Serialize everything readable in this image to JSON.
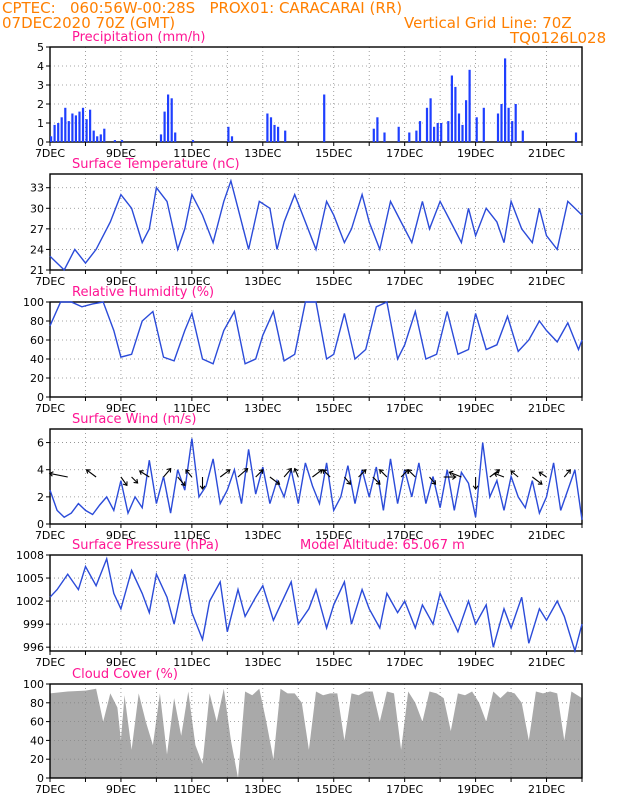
{
  "header": {
    "line1": "CPTEC:   060:56W-00:28S   PROX01: CARACARAI (RR)",
    "line2_left": "07DEC2020 70Z (GMT)",
    "line2_right": "Vertical Grid Line: 70Z",
    "line3_right": "TQ0126L028"
  },
  "colors": {
    "header": "#ff7f00",
    "panel_title": "#ff1493",
    "series": "#2b4bd9",
    "bars": "#1f3fff",
    "cloud": "#a9a9a9",
    "arrow": "#000000"
  },
  "date_labels": [
    "7DEC",
    "9DEC",
    "11DEC",
    "13DEC",
    "15DEC",
    "17DEC",
    "19DEC",
    "21DEC"
  ],
  "chart_data": [
    {
      "id": "precip",
      "type": "bar",
      "title": "Precipitation (mm/h)",
      "x_range_days": [
        7,
        22
      ],
      "ylim": [
        0,
        5
      ],
      "yticks": [
        "0",
        "1",
        "2",
        "3",
        "4",
        "5"
      ],
      "x": [
        7.0,
        7.1,
        7.2,
        7.3,
        7.4,
        7.5,
        7.6,
        7.7,
        7.8,
        7.9,
        8.0,
        8.1,
        8.2,
        8.3,
        8.4,
        8.5,
        8.8,
        9.0,
        10.1,
        10.2,
        10.3,
        10.4,
        10.5,
        11.0,
        12.0,
        12.1,
        13.1,
        13.2,
        13.3,
        13.4,
        13.6,
        14.7,
        16.1,
        16.2,
        16.4,
        16.8,
        17.1,
        17.3,
        17.4,
        17.6,
        17.7,
        17.8,
        17.9,
        18.0,
        18.2,
        18.3,
        18.4,
        18.5,
        18.6,
        18.7,
        18.8,
        19.0,
        19.2,
        19.6,
        19.7,
        19.8,
        19.9,
        20.0,
        20.1,
        20.3,
        21.8
      ],
      "values": [
        0.3,
        0.9,
        1.0,
        1.3,
        1.8,
        1.1,
        1.5,
        1.4,
        1.6,
        1.8,
        1.2,
        1.7,
        0.6,
        0.3,
        0.4,
        0.7,
        0.1,
        0.1,
        0.4,
        1.6,
        2.5,
        2.3,
        0.5,
        0.1,
        0.8,
        0.3,
        1.5,
        1.3,
        0.9,
        0.8,
        0.6,
        2.5,
        0.7,
        1.3,
        0.5,
        0.8,
        0.5,
        0.6,
        1.1,
        1.8,
        2.3,
        0.8,
        1.0,
        1.0,
        1.1,
        3.5,
        2.9,
        1.5,
        0.9,
        2.2,
        3.8,
        1.3,
        1.8,
        1.5,
        2.0,
        4.4,
        1.8,
        1.1,
        2.0,
        0.6,
        0.5
      ]
    },
    {
      "id": "temp",
      "type": "line",
      "title": "Surface Temperature (nC)",
      "x_range_days": [
        7,
        22
      ],
      "ylim": [
        21,
        35
      ],
      "yticks": [
        "21",
        "24",
        "27",
        "30",
        "33"
      ],
      "x": [
        7.0,
        7.2,
        7.4,
        7.7,
        8.0,
        8.3,
        8.5,
        8.7,
        9.0,
        9.3,
        9.6,
        9.8,
        10.0,
        10.3,
        10.6,
        10.8,
        11.0,
        11.3,
        11.6,
        11.9,
        12.1,
        12.3,
        12.6,
        12.9,
        13.2,
        13.4,
        13.6,
        13.9,
        14.2,
        14.5,
        14.8,
        15.0,
        15.3,
        15.5,
        15.8,
        16.0,
        16.3,
        16.6,
        16.9,
        17.2,
        17.5,
        17.7,
        18.0,
        18.3,
        18.6,
        18.8,
        19.0,
        19.3,
        19.6,
        19.8,
        20.0,
        20.3,
        20.6,
        20.8,
        21.0,
        21.3,
        21.6,
        22.0
      ],
      "values": [
        23,
        22,
        21,
        24,
        22,
        24,
        26,
        28,
        32,
        30,
        25,
        27,
        33,
        31,
        24,
        27,
        32,
        29,
        25,
        31,
        34,
        30,
        24,
        31,
        30,
        24,
        28,
        32,
        28,
        24,
        31,
        29,
        25,
        27,
        32,
        28,
        24,
        31,
        28,
        25,
        31,
        27,
        31,
        28,
        25,
        30,
        26,
        30,
        28,
        25,
        31,
        27,
        25,
        30,
        26,
        24,
        31,
        29
      ]
    },
    {
      "id": "rh",
      "type": "line",
      "title": "Relative Humidity (%)",
      "x_range_days": [
        7,
        22
      ],
      "ylim": [
        0,
        100
      ],
      "yticks": [
        "0",
        "20",
        "40",
        "60",
        "80",
        "100"
      ],
      "x": [
        7.0,
        7.3,
        7.6,
        7.9,
        8.2,
        8.5,
        8.8,
        9.0,
        9.3,
        9.6,
        9.9,
        10.2,
        10.5,
        10.8,
        11.0,
        11.3,
        11.6,
        11.9,
        12.2,
        12.5,
        12.8,
        13.0,
        13.3,
        13.6,
        13.9,
        14.2,
        14.5,
        14.8,
        15.0,
        15.3,
        15.6,
        15.9,
        16.2,
        16.5,
        16.8,
        17.0,
        17.3,
        17.6,
        17.9,
        18.2,
        18.5,
        18.8,
        19.0,
        19.3,
        19.6,
        19.9,
        20.2,
        20.5,
        20.8,
        21.0,
        21.3,
        21.6,
        21.9,
        22.0
      ],
      "values": [
        75,
        100,
        100,
        95,
        98,
        100,
        70,
        42,
        45,
        80,
        90,
        42,
        38,
        70,
        88,
        40,
        35,
        70,
        90,
        35,
        40,
        65,
        90,
        38,
        45,
        100,
        100,
        40,
        45,
        88,
        40,
        50,
        95,
        100,
        40,
        55,
        90,
        40,
        45,
        90,
        45,
        50,
        88,
        50,
        55,
        85,
        48,
        60,
        80,
        70,
        58,
        78,
        50,
        60
      ]
    },
    {
      "id": "wind",
      "type": "line",
      "title": "Surface Wind (m/s)",
      "x_range_days": [
        7,
        22
      ],
      "ylim": [
        0,
        7
      ],
      "yticks": [
        "0",
        "2",
        "4",
        "6"
      ],
      "x": [
        7.0,
        7.2,
        7.4,
        7.6,
        7.8,
        8.0,
        8.2,
        8.4,
        8.6,
        8.8,
        9.0,
        9.2,
        9.4,
        9.6,
        9.8,
        10.0,
        10.2,
        10.4,
        10.6,
        10.8,
        11.0,
        11.2,
        11.4,
        11.6,
        11.8,
        12.0,
        12.2,
        12.4,
        12.6,
        12.8,
        13.0,
        13.2,
        13.4,
        13.6,
        13.8,
        14.0,
        14.2,
        14.4,
        14.6,
        14.8,
        15.0,
        15.2,
        15.4,
        15.6,
        15.8,
        16.0,
        16.2,
        16.4,
        16.6,
        16.8,
        17.0,
        17.2,
        17.4,
        17.6,
        17.8,
        18.0,
        18.2,
        18.4,
        18.6,
        18.8,
        19.0,
        19.2,
        19.4,
        19.6,
        19.8,
        20.0,
        20.2,
        20.4,
        20.6,
        20.8,
        21.0,
        21.2,
        21.4,
        21.6,
        21.8,
        22.0
      ],
      "values": [
        2.5,
        1.0,
        0.5,
        0.8,
        1.5,
        1.0,
        0.7,
        1.4,
        2.0,
        1.0,
        3.2,
        0.8,
        2.0,
        1.2,
        4.7,
        1.5,
        3.5,
        0.8,
        4.0,
        2.5,
        6.3,
        2.0,
        2.8,
        4.8,
        1.5,
        2.5,
        4.0,
        1.5,
        5.5,
        2.2,
        4.2,
        1.5,
        3.2,
        2.0,
        4.0,
        1.5,
        4.5,
        2.8,
        1.5,
        4.5,
        1.0,
        2.0,
        4.3,
        1.5,
        4.0,
        2.0,
        4.2,
        1.0,
        4.8,
        1.5,
        4.0,
        2.0,
        4.5,
        1.5,
        3.5,
        1.2,
        4.0,
        1.0,
        3.8,
        3.0,
        0.5,
        6.0,
        2.0,
        3.2,
        1.0,
        3.5,
        2.0,
        1.2,
        3.2,
        0.8,
        2.0,
        4.5,
        1.0,
        2.5,
        4.0,
        0.3
      ]
    },
    {
      "id": "wind_arrows",
      "type": "vector",
      "x": [
        7.5,
        8.3,
        9.0,
        9.3,
        9.8,
        10.2,
        10.6,
        11.0,
        11.3,
        11.8,
        12.3,
        12.8,
        13.2,
        13.6,
        14.0,
        14.4,
        14.9,
        15.3,
        15.7,
        16.1,
        16.5,
        16.9,
        17.3,
        17.7,
        18.1,
        18.6,
        19.0,
        19.4,
        19.8,
        20.2,
        20.6,
        21.0,
        21.5
      ],
      "u": [
        -1.5,
        -0.8,
        0.5,
        0.5,
        -0.8,
        0.6,
        0.6,
        -0.5,
        0.0,
        0.8,
        0.8,
        0.6,
        0.8,
        0.6,
        -0.3,
        0.8,
        -0.6,
        0.5,
        0.6,
        0.6,
        -0.6,
        0.6,
        -0.6,
        0.5,
        1.0,
        -1.0,
        0.0,
        0.8,
        -0.8,
        -0.6,
        0.8,
        -0.6,
        0.5
      ],
      "v": [
        0.3,
        0.6,
        -0.7,
        -0.5,
        0.5,
        0.7,
        -0.7,
        0.6,
        -1.0,
        0.6,
        0.7,
        0.6,
        -0.6,
        0.7,
        0.7,
        0.6,
        0.6,
        -0.6,
        0.6,
        -0.6,
        0.6,
        0.6,
        0.6,
        -0.6,
        0.0,
        0.4,
        -1.0,
        0.6,
        0.3,
        0.5,
        -0.6,
        0.4,
        0.6
      ]
    },
    {
      "id": "pres",
      "type": "line",
      "title": "Surface Pressure (hPa)",
      "extra_label": "Model Altitude: 65.067 m",
      "x_range_days": [
        7,
        22
      ],
      "ylim": [
        995.5,
        1008
      ],
      "yticks": [
        "996",
        "999",
        "1002",
        "1005",
        "1008"
      ],
      "x": [
        7.0,
        7.2,
        7.5,
        7.8,
        8.0,
        8.3,
        8.6,
        8.8,
        9.0,
        9.3,
        9.6,
        9.8,
        10.0,
        10.3,
        10.5,
        10.8,
        11.0,
        11.3,
        11.5,
        11.8,
        12.0,
        12.3,
        12.5,
        12.8,
        13.0,
        13.3,
        13.5,
        13.8,
        14.0,
        14.3,
        14.5,
        14.8,
        15.0,
        15.3,
        15.5,
        15.8,
        16.0,
        16.3,
        16.5,
        16.8,
        17.0,
        17.3,
        17.5,
        17.8,
        18.0,
        18.3,
        18.5,
        18.8,
        19.0,
        19.3,
        19.5,
        19.8,
        20.0,
        20.3,
        20.5,
        20.8,
        21.0,
        21.3,
        21.5,
        21.8,
        22.0
      ],
      "values": [
        1002.5,
        1003.5,
        1005.5,
        1003.5,
        1006.5,
        1004.0,
        1007.5,
        1003.0,
        1001.0,
        1006.0,
        1003.0,
        1000.5,
        1005.5,
        1002.5,
        999.0,
        1005.5,
        1000.5,
        997.0,
        1002.0,
        1004.5,
        998.0,
        1003.5,
        1000.0,
        1002.5,
        1004.0,
        999.5,
        1001.5,
        1004.5,
        999.0,
        1001.0,
        1003.5,
        998.5,
        1001.5,
        1004.5,
        999.0,
        1003.5,
        1001.0,
        998.5,
        1003.0,
        1000.5,
        1002.0,
        998.5,
        1001.5,
        999.0,
        1003.0,
        1000.0,
        998.0,
        1002.0,
        999.0,
        1001.5,
        996.0,
        1001.0,
        998.5,
        1002.5,
        996.5,
        1001.0,
        999.5,
        1002.0,
        1000.0,
        995.5,
        999.0
      ]
    },
    {
      "id": "cloud",
      "type": "area",
      "title": "Cloud Cover (%)",
      "x_range_days": [
        7,
        22
      ],
      "ylim": [
        0,
        100
      ],
      "yticks": [
        "0",
        "20",
        "40",
        "60",
        "80",
        "100"
      ],
      "x": [
        7.0,
        7.5,
        8.0,
        8.3,
        8.5,
        8.7,
        8.9,
        9.0,
        9.1,
        9.3,
        9.5,
        9.7,
        9.9,
        10.1,
        10.3,
        10.5,
        10.7,
        10.9,
        11.1,
        11.3,
        11.5,
        11.7,
        11.9,
        12.1,
        12.3,
        12.5,
        12.7,
        12.9,
        13.1,
        13.3,
        13.5,
        13.7,
        13.9,
        14.1,
        14.3,
        14.5,
        14.7,
        14.9,
        15.1,
        15.3,
        15.5,
        15.7,
        15.9,
        16.1,
        16.3,
        16.5,
        16.7,
        16.9,
        17.1,
        17.3,
        17.5,
        17.7,
        17.9,
        18.1,
        18.3,
        18.5,
        18.7,
        18.9,
        19.1,
        19.3,
        19.5,
        19.7,
        19.9,
        20.1,
        20.3,
        20.5,
        20.7,
        20.9,
        21.1,
        21.3,
        21.5,
        21.7,
        22.0
      ],
      "values": [
        90,
        92,
        93,
        95,
        60,
        90,
        75,
        40,
        88,
        30,
        90,
        60,
        35,
        90,
        25,
        85,
        45,
        92,
        35,
        15,
        90,
        60,
        95,
        40,
        0,
        92,
        88,
        95,
        60,
        20,
        95,
        90,
        90,
        80,
        30,
        92,
        88,
        90,
        90,
        40,
        90,
        88,
        92,
        92,
        60,
        92,
        90,
        30,
        92,
        80,
        60,
        92,
        90,
        85,
        50,
        90,
        88,
        92,
        80,
        60,
        92,
        85,
        92,
        90,
        80,
        40,
        92,
        90,
        92,
        90,
        40,
        92,
        85
      ]
    }
  ]
}
